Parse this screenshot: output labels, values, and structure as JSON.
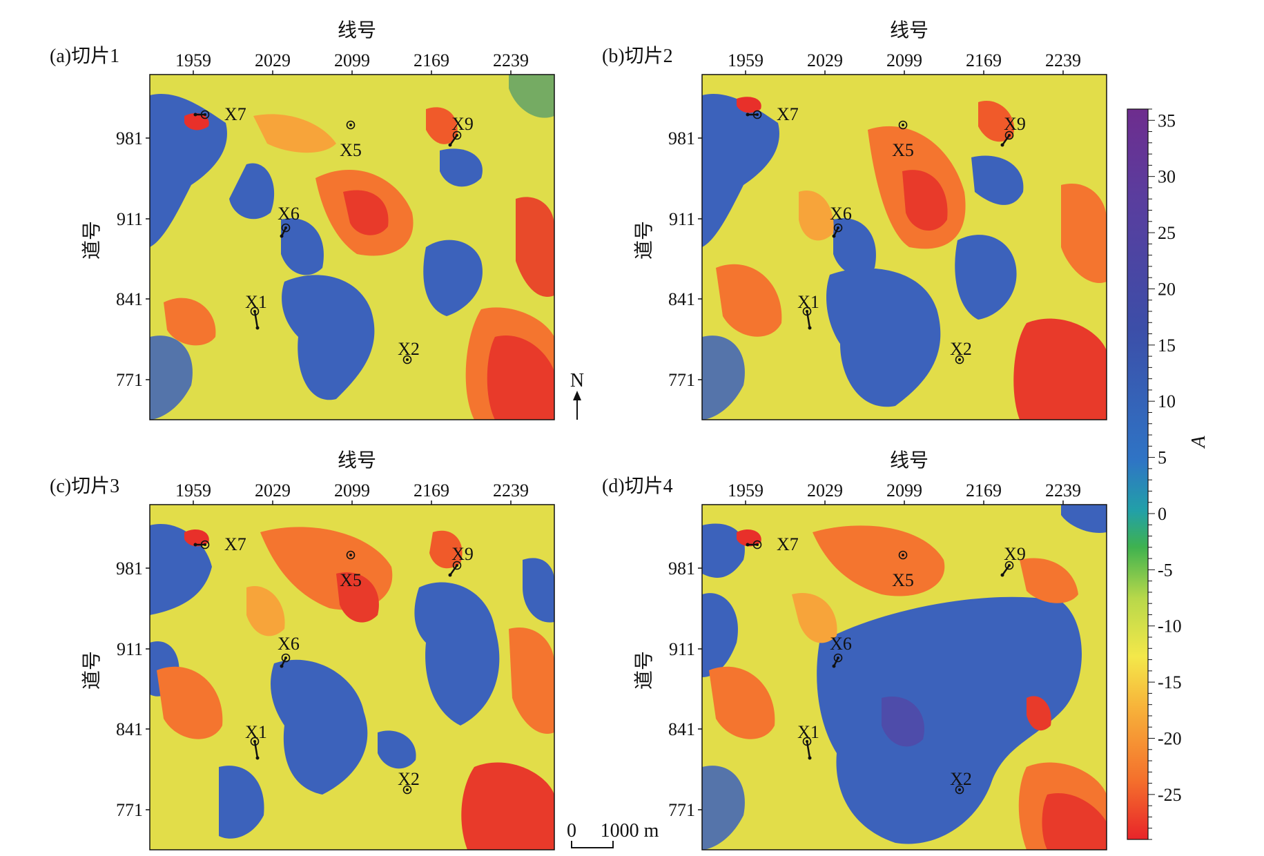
{
  "figure": {
    "colorbar": {
      "label": "A",
      "ticks": [
        "35",
        "30",
        "25",
        "20",
        "15",
        "10",
        "5",
        "0",
        "-5",
        "-10",
        "-15",
        "-20",
        "-25"
      ],
      "tick_values": [
        35,
        30,
        25,
        20,
        15,
        10,
        5,
        0,
        -5,
        -10,
        -15,
        -20,
        -25
      ],
      "range": [
        -29,
        36
      ],
      "colors": [
        "#e8242a",
        "#f46f2c",
        "#f7b23a",
        "#f4e84a",
        "#b8d84a",
        "#3fb24f",
        "#22a0a8",
        "#2f74c5",
        "#3c4ea8",
        "#5a3d9e",
        "#6e2d8e"
      ]
    },
    "scale_bar": {
      "start": "0",
      "end": "1000 m"
    },
    "north_arrow": "N",
    "panels": [
      {
        "title": "(a)切片1",
        "x_axis_label": "线号",
        "y_axis_label": "道号",
        "x_ticks": [
          "1959",
          "2029",
          "2099",
          "2169",
          "2239"
        ],
        "y_ticks": [
          "981",
          "911",
          "841",
          "771"
        ],
        "wells": [
          "X7",
          "X5",
          "X9",
          "X6",
          "X1",
          "X2"
        ]
      },
      {
        "title": "(b)切片2",
        "x_axis_label": "线号",
        "y_axis_label": "道号",
        "x_ticks": [
          "1959",
          "2029",
          "2099",
          "2169",
          "2239"
        ],
        "y_ticks": [
          "981",
          "911",
          "841",
          "771"
        ],
        "wells": [
          "X7",
          "X5",
          "X9",
          "X6",
          "X1",
          "X2"
        ]
      },
      {
        "title": "(c)切片3",
        "x_axis_label": "线号",
        "y_axis_label": "道号",
        "x_ticks": [
          "1959",
          "2029",
          "2099",
          "2169",
          "2239"
        ],
        "y_ticks": [
          "981",
          "911",
          "841",
          "771"
        ],
        "wells": [
          "X7",
          "X5",
          "X9",
          "X6",
          "X1",
          "X2"
        ]
      },
      {
        "title": "(d)切片4",
        "x_axis_label": "线号",
        "y_axis_label": "道号",
        "x_ticks": [
          "1959",
          "2029",
          "2099",
          "2169",
          "2239"
        ],
        "y_ticks": [
          "981",
          "911",
          "841",
          "771"
        ],
        "wells": [
          "X7",
          "X5",
          "X9",
          "X6",
          "X1",
          "X2"
        ]
      }
    ]
  }
}
